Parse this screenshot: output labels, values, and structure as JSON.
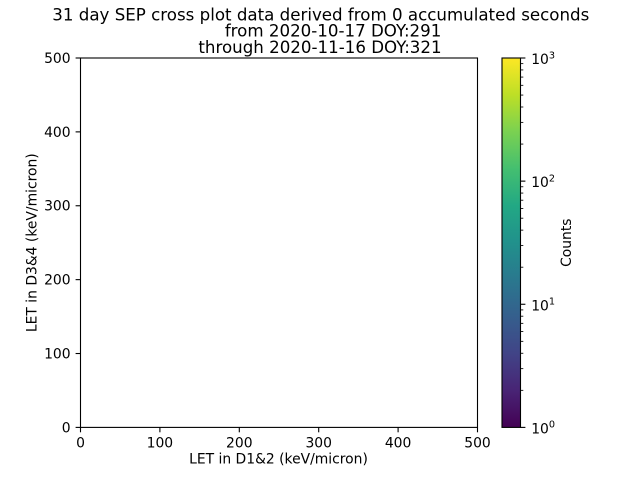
{
  "chart_data": {
    "type": "scatter",
    "title": "31 day SEP cross plot data derived from 0 accumulated seconds\nfrom 2020-10-17 DOY:291\nthrough 2020-11-16 DOY:321",
    "title_lines": [
      "31 day SEP cross plot data derived from 0 accumulated seconds",
      "from 2020-10-17 DOY:291",
      "through 2020-11-16 DOY:321"
    ],
    "xlabel": "LET in D1&2 (keV/micron)",
    "ylabel": "LET in D3&4 (keV/micron)",
    "xlim": [
      0,
      500
    ],
    "ylim": [
      0,
      500
    ],
    "xticks": [
      0,
      100,
      200,
      300,
      400,
      500
    ],
    "yticks": [
      0,
      100,
      200,
      300,
      400,
      500
    ],
    "points": [],
    "grid": false,
    "legend": null,
    "background": "#ffffff",
    "text_color": "#000000",
    "axis_color": "#000000",
    "colorbar": {
      "label": "Counts",
      "scale": "log",
      "min": 1,
      "max": 1000,
      "tick_base": "10",
      "tick_exponents": [
        0,
        1,
        2,
        3
      ],
      "minor_tick_multiples": [
        2,
        3,
        4,
        5,
        6,
        7,
        8,
        9
      ],
      "colormap": "viridis",
      "colormap_stops": [
        {
          "t": 0.0,
          "color": "#440154"
        },
        {
          "t": 0.1,
          "color": "#482475"
        },
        {
          "t": 0.2,
          "color": "#414487"
        },
        {
          "t": 0.3,
          "color": "#355f8d"
        },
        {
          "t": 0.4,
          "color": "#2a788e"
        },
        {
          "t": 0.5,
          "color": "#21918c"
        },
        {
          "t": 0.6,
          "color": "#22a884"
        },
        {
          "t": 0.7,
          "color": "#44bf70"
        },
        {
          "t": 0.8,
          "color": "#7ad151"
        },
        {
          "t": 0.9,
          "color": "#bddf26"
        },
        {
          "t": 1.0,
          "color": "#fde725"
        }
      ]
    }
  }
}
